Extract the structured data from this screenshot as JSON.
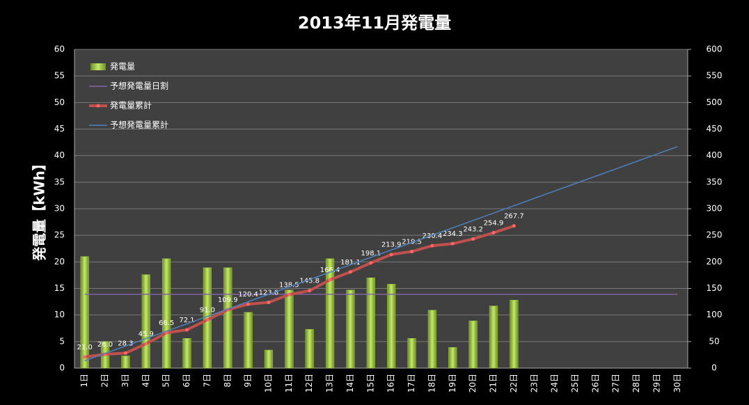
{
  "chart_data": {
    "type": "bar",
    "title": "2013年11月発電量",
    "y_label": "発電量【kWh】",
    "categories": [
      "1日",
      "2日",
      "3日",
      "4日",
      "5日",
      "6日",
      "7日",
      "8日",
      "9日",
      "10日",
      "11日",
      "12日",
      "13日",
      "14日",
      "15日",
      "16日",
      "17日",
      "18日",
      "19日",
      "20日",
      "21日",
      "22日",
      "23日",
      "24日",
      "25日",
      "26日",
      "27日",
      "28日",
      "29日",
      "30日"
    ],
    "ylim": [
      0,
      60
    ],
    "yticks": [
      0,
      5,
      10,
      15,
      20,
      25,
      30,
      35,
      40,
      45,
      50,
      55,
      60
    ],
    "y2lim": [
      0,
      600
    ],
    "y2ticks": [
      0,
      50,
      100,
      150,
      200,
      250,
      300,
      350,
      400,
      450,
      500,
      550,
      600
    ],
    "grid": true,
    "legend": "upper left",
    "series": [
      {
        "name": "発電量",
        "type": "bar",
        "color": "#9acd32",
        "values": [
          21.0,
          5.0,
          2.3,
          17.6,
          20.6,
          5.6,
          18.9,
          18.9,
          10.5,
          3.4,
          14.7,
          7.3,
          20.6,
          14.7,
          17.0,
          15.8,
          5.6,
          10.9,
          3.9,
          8.9,
          11.7,
          12.8,
          null,
          null,
          null,
          null,
          null,
          null,
          null,
          null
        ]
      },
      {
        "name": "予想発電量日割",
        "type": "line",
        "color": "#8064a2",
        "values": [
          13.9,
          13.9,
          13.9,
          13.9,
          13.9,
          13.9,
          13.9,
          13.9,
          13.9,
          13.9,
          13.9,
          13.9,
          13.9,
          13.9,
          13.9,
          13.9,
          13.9,
          13.9,
          13.9,
          13.9,
          13.9,
          13.9,
          13.9,
          13.9,
          13.9,
          13.9,
          13.9,
          13.9,
          13.9,
          13.9
        ]
      },
      {
        "name": "発電量累計",
        "type": "line",
        "axis": "y2",
        "color": "#c0504d",
        "markers": true,
        "values": [
          21.0,
          26.0,
          28.3,
          45.9,
          66.5,
          72.1,
          91.0,
          109.9,
          120.4,
          123.8,
          138.5,
          145.8,
          166.4,
          181.1,
          198.1,
          213.9,
          219.5,
          230.4,
          234.3,
          243.2,
          254.9,
          267.7,
          null,
          null,
          null,
          null,
          null,
          null,
          null,
          null
        ],
        "value_labels": [
          "21.0",
          "26.0",
          "28.3",
          "45.9",
          "66.5",
          "72.1",
          "91.0",
          "109.9",
          "120.4",
          "123.8",
          "138.5",
          "145.8",
          "166.4",
          "181.1",
          "198.1",
          "213.9",
          "219.5",
          "230.4",
          "234.3",
          "243.2",
          "254.9",
          "267.7",
          null,
          null,
          null,
          null,
          null,
          null,
          null,
          null
        ]
      },
      {
        "name": "予想発電量累計",
        "type": "line",
        "axis": "y2",
        "color": "#4f81bd",
        "values": [
          13.9,
          27.8,
          41.7,
          55.6,
          69.5,
          83.4,
          97.3,
          111.2,
          125.1,
          139.0,
          152.9,
          166.8,
          180.7,
          194.6,
          208.5,
          222.4,
          236.3,
          250.2,
          264.1,
          278.0,
          291.9,
          305.8,
          319.7,
          333.6,
          347.5,
          361.4,
          375.3,
          389.2,
          403.1,
          417.0
        ]
      }
    ]
  }
}
